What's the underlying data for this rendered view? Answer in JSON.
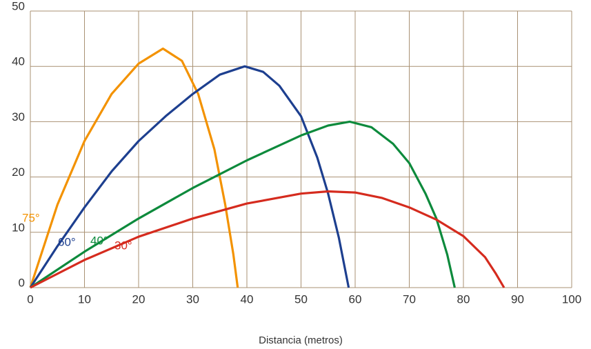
{
  "chart_data": {
    "type": "line",
    "x_label": "Distancia (metros)",
    "xlim": [
      0,
      100
    ],
    "xticks": [
      0,
      10,
      20,
      30,
      40,
      50,
      60,
      70,
      80,
      90,
      100
    ],
    "ylim": [
      0,
      50
    ],
    "yticks": [
      0,
      10,
      20,
      30,
      40,
      50
    ],
    "grid": true,
    "series": [
      {
        "name": "75°",
        "color": "#f39200",
        "x": [
          0,
          5,
          10,
          15,
          20,
          24.5,
          28,
          31,
          34,
          36,
          37.5,
          38.3
        ],
        "values": [
          0,
          15,
          26.5,
          35,
          40.5,
          43.2,
          41,
          35,
          25,
          15,
          6,
          0
        ]
      },
      {
        "name": "60°",
        "color": "#1d3f8f",
        "x": [
          0,
          5,
          10,
          15,
          20,
          25,
          30,
          35,
          39.6,
          43,
          46,
          50,
          53,
          55,
          57,
          58.8
        ],
        "values": [
          0,
          7.5,
          14.5,
          21,
          26.5,
          31,
          35,
          38.5,
          40,
          39,
          36.5,
          31,
          23.5,
          17,
          9,
          0
        ]
      },
      {
        "name": "40°",
        "color": "#0d8a3c",
        "x": [
          0,
          10,
          20,
          30,
          40,
          50,
          55,
          59,
          63,
          67,
          70,
          73,
          75,
          77,
          78.4
        ],
        "values": [
          0,
          6.5,
          12.5,
          18,
          23,
          27.5,
          29.3,
          30,
          29,
          26,
          22.5,
          17,
          12.5,
          6,
          0
        ]
      },
      {
        "name": "30°",
        "color": "#d52b1e",
        "x": [
          0,
          10,
          20,
          30,
          40,
          50,
          55,
          60,
          65,
          70,
          75,
          80,
          84,
          86,
          87.5
        ],
        "values": [
          0,
          5,
          9.2,
          12.5,
          15.2,
          17,
          17.4,
          17.2,
          16.2,
          14.5,
          12.3,
          9.3,
          5.5,
          2.5,
          0
        ]
      }
    ]
  }
}
